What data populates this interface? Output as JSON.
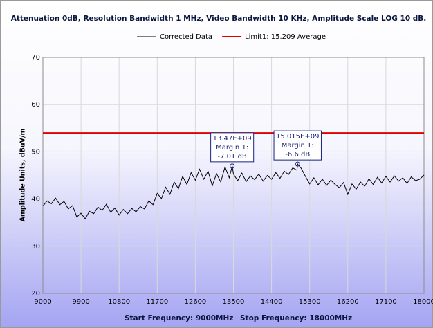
{
  "chart_data": {
    "type": "line",
    "title": "Attenuation 0dB, Resolution Bandwidth 1 MHz, Video Bandwidth 10 KHz, Amplitude Scale LOG 10 dB.",
    "ylabel": "Amplitude Units, dBuV/m",
    "footer": [
      "Start Frequency: 9000MHz",
      "Stop Frequency: 18000MHz"
    ],
    "xlim": [
      9000,
      18000
    ],
    "xticks": [
      9000,
      9900,
      10800,
      11700,
      12600,
      13500,
      14400,
      15300,
      16200,
      17100,
      18000
    ],
    "ylim": [
      20,
      70
    ],
    "yticks": [
      20,
      30,
      40,
      50,
      60,
      70
    ],
    "grid": true,
    "legend": "top",
    "series": [
      {
        "name": "Corrected Data",
        "color": "#000000",
        "x": [
          9000,
          9100,
          9200,
          9300,
          9400,
          9500,
          9600,
          9700,
          9800,
          9900,
          10000,
          10100,
          10200,
          10300,
          10400,
          10500,
          10600,
          10700,
          10800,
          10900,
          11000,
          11100,
          11200,
          11300,
          11400,
          11500,
          11600,
          11700,
          11800,
          11900,
          12000,
          12100,
          12200,
          12300,
          12400,
          12500,
          12600,
          12700,
          12800,
          12900,
          13000,
          13100,
          13200,
          13300,
          13400,
          13470,
          13500,
          13600,
          13700,
          13800,
          13900,
          14000,
          14100,
          14200,
          14300,
          14400,
          14500,
          14600,
          14700,
          14800,
          14900,
          15000,
          15015,
          15100,
          15200,
          15300,
          15400,
          15500,
          15600,
          15700,
          15800,
          15900,
          16000,
          16100,
          16200,
          16300,
          16400,
          16500,
          16600,
          16700,
          16800,
          16900,
          17000,
          17100,
          17200,
          17300,
          17400,
          17500,
          17600,
          17700,
          17800,
          17900,
          18000
        ],
        "values": [
          38.5,
          39.6,
          39.0,
          40.2,
          38.8,
          39.5,
          37.9,
          38.6,
          36.2,
          37.0,
          35.8,
          37.4,
          36.9,
          38.3,
          37.6,
          38.9,
          37.2,
          38.1,
          36.6,
          37.8,
          36.9,
          38.0,
          37.3,
          38.4,
          37.9,
          39.6,
          38.8,
          41.2,
          40.1,
          42.5,
          41.0,
          43.6,
          42.2,
          44.8,
          43.1,
          45.6,
          44.0,
          46.3,
          44.2,
          45.9,
          42.8,
          45.4,
          43.6,
          46.8,
          44.5,
          47.0,
          45.3,
          43.9,
          45.5,
          43.7,
          44.9,
          44.1,
          45.3,
          43.8,
          45.0,
          44.2,
          45.6,
          44.4,
          45.9,
          45.2,
          46.6,
          46.1,
          47.4,
          46.5,
          44.8,
          43.2,
          44.5,
          43.0,
          44.2,
          42.9,
          44.0,
          43.1,
          42.4,
          43.5,
          41.0,
          43.2,
          42.1,
          43.6,
          42.7,
          44.3,
          43.1,
          44.6,
          43.4,
          44.8,
          43.6,
          44.9,
          43.8,
          44.5,
          43.3,
          44.7,
          43.9,
          44.2,
          45.1
        ]
      },
      {
        "name": "Limit1: 15.209 Average",
        "color": "#e00000",
        "x": [
          9000,
          18000
        ],
        "values": [
          54,
          54
        ]
      }
    ],
    "annotations": [
      {
        "x": 13470,
        "y": 47.0,
        "lines": [
          "13.47E+09",
          "Margin 1:",
          "-7.01 dB"
        ]
      },
      {
        "x": 15015,
        "y": 47.4,
        "lines": [
          "15.015E+09",
          "Margin 1:",
          "-6.6 dB"
        ]
      }
    ]
  }
}
